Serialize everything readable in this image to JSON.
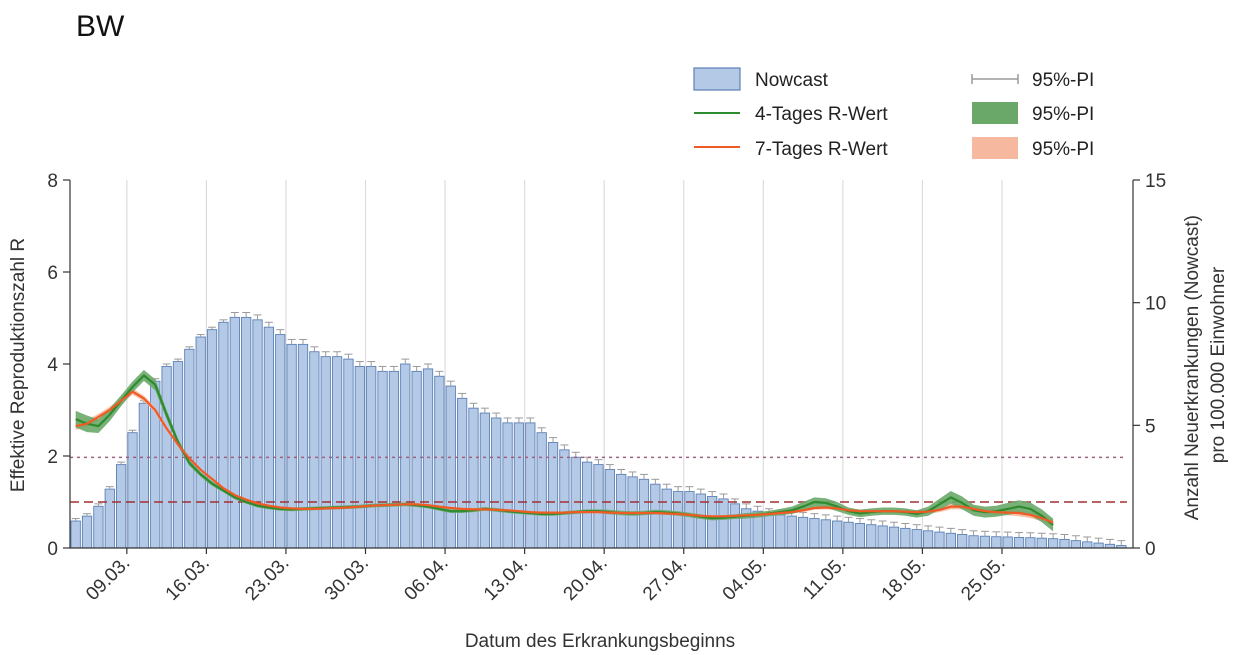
{
  "title": "BW",
  "legend": {
    "nowcast": "Nowcast",
    "r4": "4-Tages R-Wert",
    "r7": "7-Tages R-Wert",
    "pi_bar": "95%-PI",
    "pi_r4": "95%-PI",
    "pi_r7": "95%-PI"
  },
  "colors": {
    "bar_fill": "#b4c9e6",
    "bar_stroke": "#5b80b8",
    "errorbar": "#9a9a9a",
    "r4_line": "#2e8b2e",
    "r4_band": "#6aa86a",
    "r7_line": "#f05a24",
    "r7_band": "#f7b8a0",
    "ref_line_dark": "#a03030",
    "ref_line_purple": "#a06080",
    "grid": "#dddddd"
  },
  "chart_data": {
    "type": "bar",
    "title": "BW",
    "xlabel": "Datum des Erkrankungsbeginns",
    "ylabel_left": "Effektive Reproduktionszahl R",
    "ylabel_right": "Anzahl Neuerkrankungen (Nowcast)\npro 100.000 Einwohner",
    "ylim_left": [
      0,
      8
    ],
    "ylim_right": [
      0,
      15
    ],
    "yticks_left": [
      0,
      2,
      4,
      6,
      8
    ],
    "yticks_right": [
      0,
      5,
      10,
      15
    ],
    "xtick_labels": [
      "09.03.",
      "16.03.",
      "23.03.",
      "30.03.",
      "06.04.",
      "13.04.",
      "20.04.",
      "27.04.",
      "04.05.",
      "11.05.",
      "18.05.",
      "25.05."
    ],
    "xtick_day_index": [
      4,
      11,
      18,
      25,
      32,
      39,
      46,
      53,
      60,
      67,
      74,
      81
    ],
    "start_date": "05.03.",
    "reference_lines": [
      {
        "axis": "left",
        "value": 1,
        "style": "dashed"
      },
      {
        "axis": "left",
        "value": 1.97,
        "style": "dotted"
      }
    ],
    "nowcast": {
      "values": [
        1.1,
        1.3,
        1.7,
        2.4,
        3.4,
        4.7,
        5.9,
        6.8,
        7.4,
        7.6,
        8.1,
        8.6,
        8.9,
        9.2,
        9.4,
        9.4,
        9.3,
        9.0,
        8.7,
        8.3,
        8.3,
        8.0,
        7.8,
        7.8,
        7.7,
        7.4,
        7.4,
        7.2,
        7.2,
        7.5,
        7.2,
        7.3,
        7.0,
        6.6,
        6.1,
        5.7,
        5.5,
        5.3,
        5.1,
        5.1,
        5.1,
        4.7,
        4.3,
        4.0,
        3.7,
        3.5,
        3.4,
        3.2,
        3.0,
        2.9,
        2.8,
        2.6,
        2.4,
        2.3,
        2.3,
        2.2,
        2.1,
        2.0,
        1.8,
        1.6,
        1.5,
        1.4,
        1.35,
        1.3,
        1.25,
        1.2,
        1.15,
        1.1,
        1.05,
        1.0,
        0.95,
        0.9,
        0.85,
        0.8,
        0.75,
        0.7,
        0.65,
        0.6,
        0.55,
        0.5,
        0.48,
        0.46,
        0.45,
        0.43,
        0.42,
        0.4,
        0.38,
        0.35,
        0.3,
        0.25,
        0.2,
        0.15,
        0.1
      ],
      "pi_high": [
        1.2,
        1.4,
        1.8,
        2.5,
        3.5,
        4.8,
        6.0,
        6.9,
        7.5,
        7.7,
        8.2,
        8.7,
        9.0,
        9.3,
        9.6,
        9.6,
        9.5,
        9.2,
        8.9,
        8.5,
        8.5,
        8.2,
        8.0,
        8.0,
        7.9,
        7.6,
        7.6,
        7.4,
        7.4,
        7.7,
        7.4,
        7.5,
        7.2,
        6.8,
        6.3,
        5.9,
        5.7,
        5.5,
        5.3,
        5.3,
        5.3,
        4.9,
        4.5,
        4.2,
        3.9,
        3.7,
        3.6,
        3.4,
        3.2,
        3.1,
        3.0,
        2.8,
        2.6,
        2.5,
        2.5,
        2.4,
        2.3,
        2.2,
        2.0,
        1.8,
        1.7,
        1.6,
        1.55,
        1.5,
        1.45,
        1.4,
        1.35,
        1.3,
        1.25,
        1.2,
        1.15,
        1.1,
        1.05,
        1.0,
        0.95,
        0.9,
        0.85,
        0.8,
        0.75,
        0.7,
        0.68,
        0.66,
        0.65,
        0.63,
        0.62,
        0.6,
        0.58,
        0.55,
        0.5,
        0.45,
        0.4,
        0.35,
        0.3
      ]
    },
    "series": [
      {
        "name": "4-Tages R-Wert",
        "start_index": 0,
        "values": [
          2.8,
          2.7,
          2.65,
          2.9,
          3.2,
          3.5,
          3.75,
          3.55,
          2.9,
          2.3,
          1.85,
          1.6,
          1.4,
          1.25,
          1.1,
          1.0,
          0.92,
          0.88,
          0.85,
          0.84,
          0.85,
          0.86,
          0.87,
          0.88,
          0.89,
          0.9,
          0.92,
          0.93,
          0.94,
          0.95,
          0.93,
          0.9,
          0.85,
          0.8,
          0.8,
          0.82,
          0.85,
          0.83,
          0.8,
          0.78,
          0.76,
          0.74,
          0.74,
          0.76,
          0.78,
          0.8,
          0.8,
          0.78,
          0.76,
          0.75,
          0.76,
          0.78,
          0.77,
          0.75,
          0.72,
          0.68,
          0.65,
          0.66,
          0.68,
          0.7,
          0.72,
          0.75,
          0.78,
          0.82,
          0.9,
          1.0,
          0.98,
          0.9,
          0.8,
          0.75,
          0.78,
          0.8,
          0.8,
          0.78,
          0.74,
          0.8,
          0.95,
          1.1,
          0.98,
          0.82,
          0.78,
          0.8,
          0.85,
          0.9,
          0.85,
          0.7,
          0.5
        ],
        "band_width": [
          0.18,
          0.18,
          0.15,
          0.14,
          0.12,
          0.12,
          0.12,
          0.12,
          0.1,
          0.08,
          0.06,
          0.05,
          0.05,
          0.04,
          0.04,
          0.04,
          0.04,
          0.04,
          0.04,
          0.04,
          0.04,
          0.04,
          0.04,
          0.04,
          0.04,
          0.04,
          0.04,
          0.04,
          0.04,
          0.04,
          0.04,
          0.04,
          0.04,
          0.04,
          0.04,
          0.04,
          0.04,
          0.04,
          0.04,
          0.04,
          0.04,
          0.04,
          0.04,
          0.04,
          0.04,
          0.04,
          0.04,
          0.05,
          0.05,
          0.05,
          0.05,
          0.05,
          0.05,
          0.05,
          0.05,
          0.05,
          0.05,
          0.05,
          0.05,
          0.06,
          0.06,
          0.06,
          0.07,
          0.08,
          0.1,
          0.1,
          0.1,
          0.1,
          0.08,
          0.08,
          0.08,
          0.08,
          0.08,
          0.08,
          0.08,
          0.1,
          0.12,
          0.14,
          0.14,
          0.12,
          0.12,
          0.12,
          0.13,
          0.14,
          0.14,
          0.14,
          0.14
        ]
      },
      {
        "name": "7-Tages R-Wert",
        "start_index": 0,
        "values": [
          2.65,
          2.7,
          2.85,
          3.0,
          3.2,
          3.4,
          3.25,
          3.0,
          2.6,
          2.25,
          1.95,
          1.7,
          1.5,
          1.3,
          1.15,
          1.05,
          0.97,
          0.92,
          0.88,
          0.86,
          0.85,
          0.85,
          0.86,
          0.87,
          0.88,
          0.9,
          0.92,
          0.93,
          0.94,
          0.95,
          0.95,
          0.93,
          0.9,
          0.87,
          0.85,
          0.84,
          0.84,
          0.83,
          0.82,
          0.8,
          0.78,
          0.77,
          0.77,
          0.77,
          0.78,
          0.78,
          0.78,
          0.77,
          0.76,
          0.76,
          0.76,
          0.76,
          0.75,
          0.74,
          0.72,
          0.7,
          0.69,
          0.69,
          0.7,
          0.71,
          0.72,
          0.74,
          0.76,
          0.78,
          0.82,
          0.87,
          0.88,
          0.86,
          0.82,
          0.8,
          0.8,
          0.8,
          0.8,
          0.79,
          0.78,
          0.79,
          0.83,
          0.9,
          0.9,
          0.85,
          0.8,
          0.78,
          0.77,
          0.76,
          0.72,
          0.65,
          0.55
        ],
        "band_width": [
          0.08,
          0.08,
          0.07,
          0.07,
          0.07,
          0.07,
          0.06,
          0.06,
          0.05,
          0.04,
          0.03,
          0.03,
          0.03,
          0.03,
          0.02,
          0.02,
          0.02,
          0.02,
          0.02,
          0.02,
          0.02,
          0.02,
          0.02,
          0.02,
          0.02,
          0.02,
          0.02,
          0.02,
          0.02,
          0.02,
          0.02,
          0.02,
          0.02,
          0.02,
          0.02,
          0.02,
          0.02,
          0.02,
          0.02,
          0.02,
          0.02,
          0.02,
          0.02,
          0.02,
          0.02,
          0.02,
          0.02,
          0.02,
          0.02,
          0.02,
          0.02,
          0.02,
          0.02,
          0.02,
          0.02,
          0.02,
          0.02,
          0.02,
          0.02,
          0.03,
          0.03,
          0.03,
          0.03,
          0.03,
          0.04,
          0.04,
          0.04,
          0.04,
          0.04,
          0.04,
          0.04,
          0.04,
          0.04,
          0.04,
          0.04,
          0.05,
          0.05,
          0.06,
          0.06,
          0.06,
          0.06,
          0.06,
          0.06,
          0.07,
          0.07,
          0.07,
          0.07
        ]
      }
    ]
  }
}
